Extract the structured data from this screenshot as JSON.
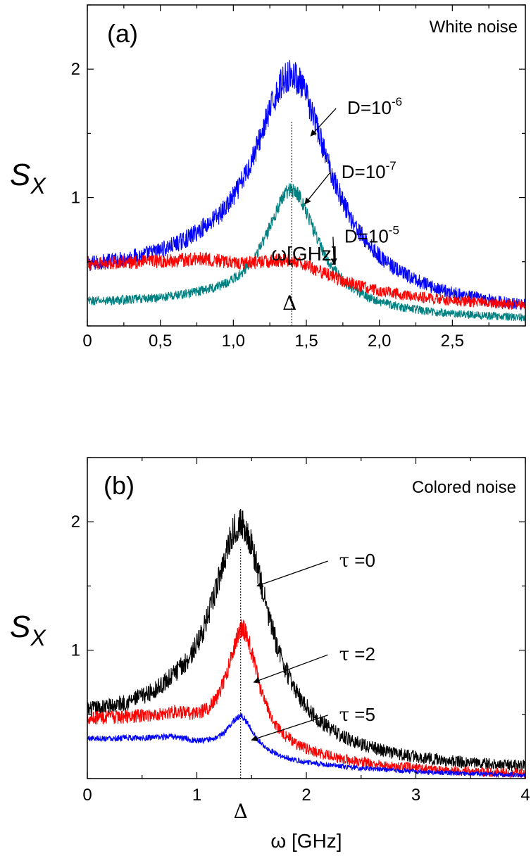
{
  "chart_data": [
    {
      "type": "line",
      "panel_label": "(a)",
      "noise_label": "White noise",
      "ylabel": "S_X",
      "xlabel": "ω[GHz]",
      "xlim": [
        0,
        3.0
      ],
      "ylim": [
        0,
        2.5
      ],
      "x_ticks": [
        0,
        0.5,
        1.0,
        1.5,
        2.0,
        2.5
      ],
      "x_tick_labels": [
        "0",
        "0,5",
        "1,0",
        "1,5",
        "2,0",
        "2,5"
      ],
      "y_ticks": [
        1,
        2
      ],
      "y_tick_labels": [
        "1",
        "2"
      ],
      "delta_label": "Δ",
      "delta_x": 1.4,
      "series": [
        {
          "name": "D=10-6",
          "color": "#0000ff",
          "base": 0.35,
          "peak_x": 1.4,
          "amplitude": 1.7,
          "halfwidth": 0.32,
          "tail": 0.05,
          "noise": 0.07
        },
        {
          "name": "D=10-7",
          "color": "#008080",
          "base": 0.14,
          "peak_x": 1.4,
          "amplitude": 0.95,
          "halfwidth": 0.22,
          "tail": 0.03,
          "noise": 0.05
        },
        {
          "name": "D=10-5",
          "color": "#ff0000",
          "base": 0.38,
          "peak_x": 1.4,
          "amplitude": 0.18,
          "halfwidth": 0.35,
          "tail": 0.1,
          "noise": 0.06
        }
      ],
      "annotations": [
        {
          "base": "D=10",
          "exp": "-6",
          "x": 1.78,
          "y": 1.65,
          "target_x": 1.53,
          "target_y": 1.48,
          "color": "#0000ff"
        },
        {
          "base": "D=10",
          "exp": "-7",
          "x": 1.74,
          "y": 1.15,
          "target_x": 1.49,
          "target_y": 0.95,
          "color": "#008080"
        },
        {
          "base": "D=10",
          "exp": "-5",
          "x": 1.76,
          "y": 0.65,
          "target_x": 1.69,
          "target_y": 0.48,
          "color": "#ff0000"
        }
      ]
    },
    {
      "type": "line",
      "panel_label": "(b)",
      "noise_label": "Colored noise",
      "ylabel": "S_X",
      "xlabel": "ω [GHz]",
      "xlim": [
        0,
        4.0
      ],
      "ylim": [
        0,
        2.5
      ],
      "x_ticks": [
        0,
        1,
        2,
        3,
        4
      ],
      "x_tick_labels": [
        "0",
        "1",
        "2",
        "3",
        "4"
      ],
      "y_ticks": [
        1,
        2
      ],
      "y_tick_labels": [
        "1",
        "2"
      ],
      "delta_label": "Δ",
      "delta_x": 1.4,
      "series": [
        {
          "name": "τ =0",
          "color": "#000000",
          "base": 0.4,
          "peak_x": 1.4,
          "amplitude": 1.7,
          "halfwidth": 0.32,
          "tail": 0.05,
          "noise": 0.07
        },
        {
          "name": "τ =2",
          "color": "#ff0000",
          "base": 0.45,
          "peak_x": 1.42,
          "amplitude": 0.9,
          "halfwidth": 0.17,
          "tail": 0.01,
          "noise": 0.06
        },
        {
          "name": "τ =5",
          "color": "#0000ff",
          "base": 0.3,
          "peak_x": 1.4,
          "amplitude": 0.3,
          "halfwidth": 0.15,
          "tail": 0.01,
          "noise": 0.03
        }
      ],
      "annotations": [
        {
          "tau": "τ",
          "value": " =0",
          "x": 2.3,
          "y": 1.65,
          "target_x": 1.55,
          "target_y": 1.5,
          "color": "#000000"
        },
        {
          "tau": "τ",
          "value": " =2",
          "x": 2.3,
          "y": 0.92,
          "target_x": 1.52,
          "target_y": 0.75,
          "color": "#ff0000"
        },
        {
          "tau": "τ",
          "value": " =5",
          "x": 2.3,
          "y": 0.45,
          "target_x": 1.5,
          "target_y": 0.3,
          "color": "#0000ff"
        }
      ]
    }
  ]
}
